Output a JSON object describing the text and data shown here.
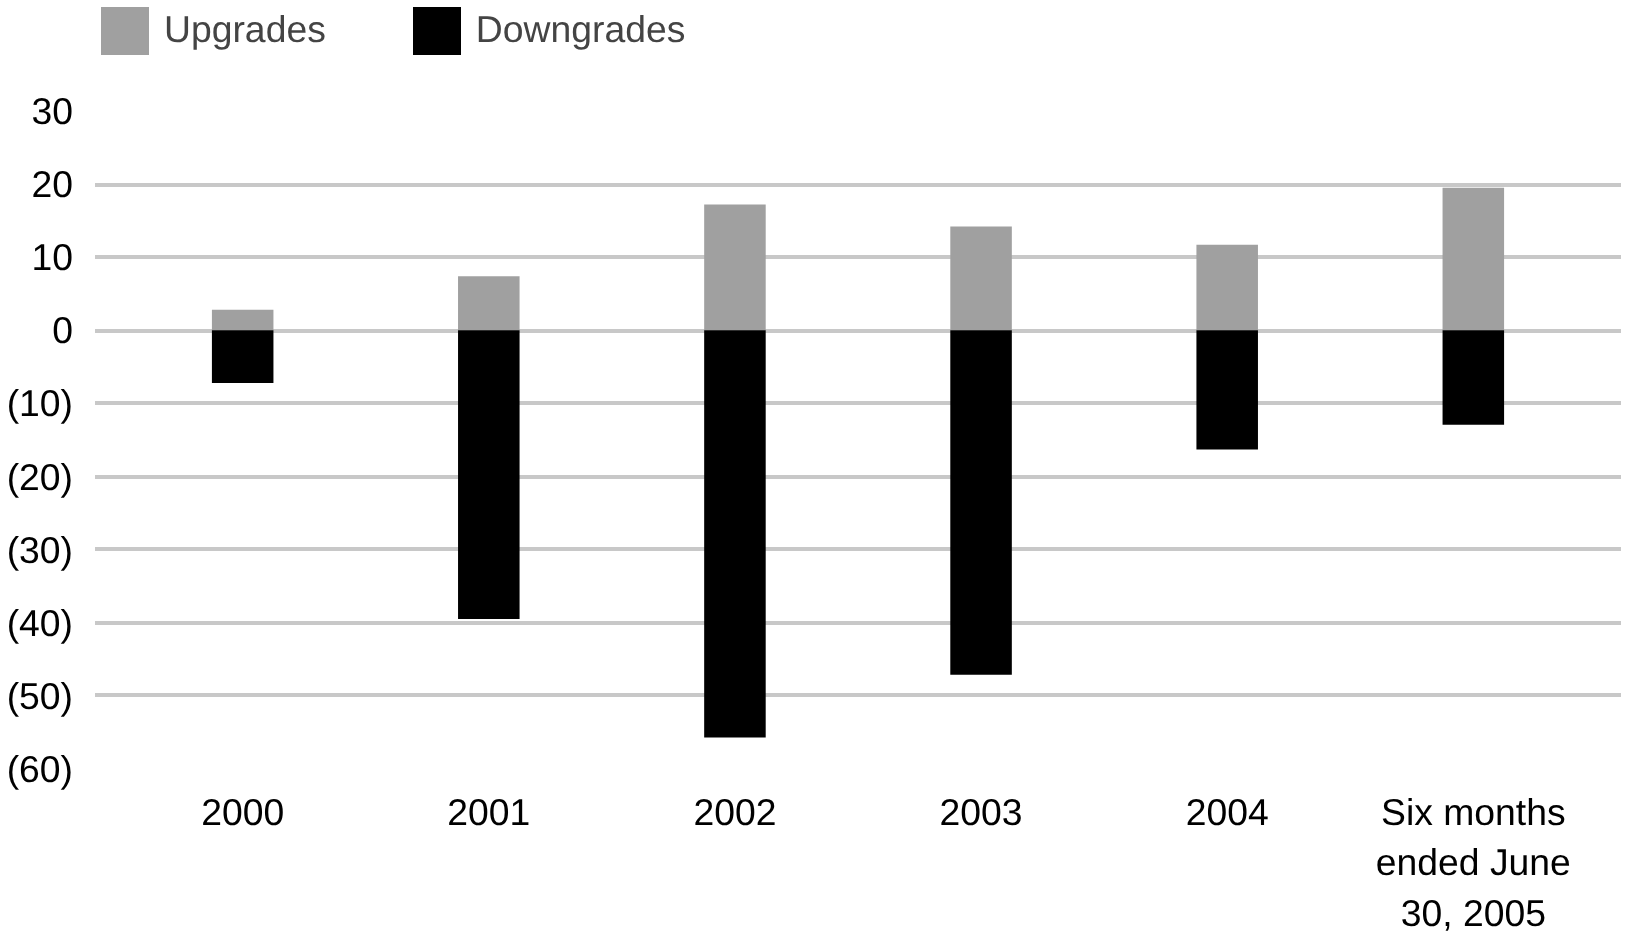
{
  "chart_data": {
    "type": "bar",
    "stacked": true,
    "categories": [
      "2000",
      "2001",
      "2002",
      "2003",
      "2004",
      "Six months\nended June\n30, 2005"
    ],
    "series": [
      {
        "name": "Upgrades",
        "color": "#a0a0a0",
        "values": [
          2.8,
          7.4,
          17.2,
          14.2,
          11.7,
          19.5
        ]
      },
      {
        "name": "Downgrades",
        "color": "#000000",
        "values": [
          -7.2,
          -39.5,
          -55.7,
          -47.1,
          -16.3,
          -12.9
        ]
      }
    ],
    "ylim": [
      -60,
      30
    ],
    "yticks": [
      {
        "value": -60,
        "label": "(60)"
      },
      {
        "value": -50,
        "label": "(50)"
      },
      {
        "value": -40,
        "label": "(40)"
      },
      {
        "value": -30,
        "label": "(30)"
      },
      {
        "value": -20,
        "label": "(20)"
      },
      {
        "value": -10,
        "label": "(10)"
      },
      0,
      10,
      20,
      30
    ],
    "grid": "y",
    "legend": "top left"
  }
}
